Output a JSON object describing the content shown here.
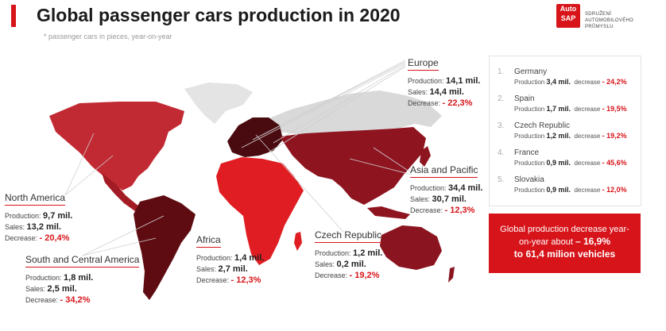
{
  "title": "Global passenger cars production in 2020",
  "subtitle": "* passenger cars in pieces, year-on-year",
  "logo": {
    "mark_top": "Auto",
    "mark_bottom": "SAP",
    "text_lines": [
      "SDRUŽENÍ",
      "AUTOMOBILOVÉHO",
      "PRŮMYSLU"
    ]
  },
  "labels": {
    "production": "Production:",
    "sales": "Sales:",
    "decrease": "Decrease:",
    "production_short": "Production",
    "decrease_short": "decrease"
  },
  "regions": {
    "europe": {
      "name": "Europe",
      "production": "14,1 mil.",
      "sales": "14,4 mil.",
      "decrease": "- 22,3%"
    },
    "asia": {
      "name": "Asia and Pacific",
      "production": "34,4 mil.",
      "sales": "30,7 mil.",
      "decrease": "- 12,3%"
    },
    "north_america": {
      "name": "North America",
      "production": "9,7 mil.",
      "sales": "13,2 mil.",
      "decrease": "- 20,4%"
    },
    "south_america": {
      "name": "South and Central America",
      "production": "1,8 mil.",
      "sales": "2,5 mil.",
      "decrease": "- 34,2%"
    },
    "africa": {
      "name": "Africa",
      "production": "1,4 mil.",
      "sales": "2,7 mil.",
      "decrease": "- 12,3%"
    },
    "czech": {
      "name": "Czech Republic",
      "production": "1,2 mil.",
      "sales": "0,2 mil.",
      "decrease": "- 19,2%"
    }
  },
  "top_countries": [
    {
      "rank": "1.",
      "name": "Germany",
      "production": "3,4 mil.",
      "decrease": "- 24,2%"
    },
    {
      "rank": "2.",
      "name": "Spain",
      "production": "1,7 mil.",
      "decrease": "- 19,5%"
    },
    {
      "rank": "3.",
      "name": "Czech Republic",
      "production": "1,2 mil.",
      "decrease": "- 19,2%"
    },
    {
      "rank": "4.",
      "name": "France",
      "production": "0,9 mil.",
      "decrease": "- 45,6%"
    },
    {
      "rank": "5.",
      "name": "Slovakia",
      "production": "0,9 mil.",
      "decrease": "- 12,0%"
    }
  ],
  "global": {
    "line1": "Global production decrease year-",
    "line2_prefix": "on-year about",
    "line2_value": "– 16,9%",
    "line3": "to 61,4 milion vehicles"
  },
  "colors": {
    "accent": "#d7141a",
    "europe": "#4a0b10",
    "asia": "#8e1420",
    "north_america": "#c22a33",
    "south_america": "#5e0c12",
    "africa": "#e01d22",
    "oceania": "#8a1520",
    "greenland": "#e4e4e4",
    "russia": "#d9d9d9"
  }
}
